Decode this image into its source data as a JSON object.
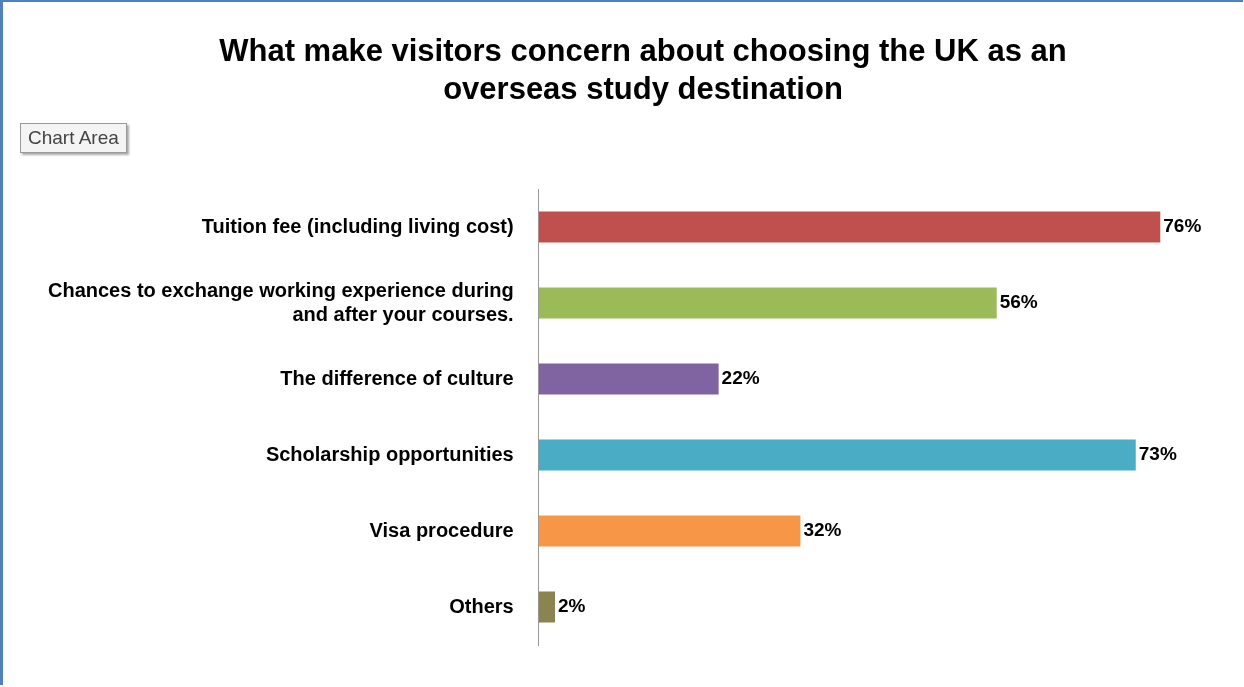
{
  "chart_data": {
    "type": "bar",
    "orientation": "horizontal",
    "title": "What make visitors concern about choosing the UK as an overseas study destination",
    "categories": [
      "Tuition fee (including living cost)",
      "Chances to exchange working experience during and after your courses.",
      "The difference of culture",
      "Scholarship opportunities",
      "Visa procedure",
      "Others"
    ],
    "values": [
      76,
      56,
      22,
      73,
      32,
      2
    ],
    "colors": [
      "#c0504d",
      "#9bbb59",
      "#8064a2",
      "#4bacc6",
      "#f79646",
      "#8c8450"
    ],
    "value_labels": [
      "76%",
      "56%",
      "22%",
      "73%",
      "32%",
      "2%"
    ],
    "tick_labels": "y",
    "annotations": [
      "Chart Area"
    ]
  }
}
